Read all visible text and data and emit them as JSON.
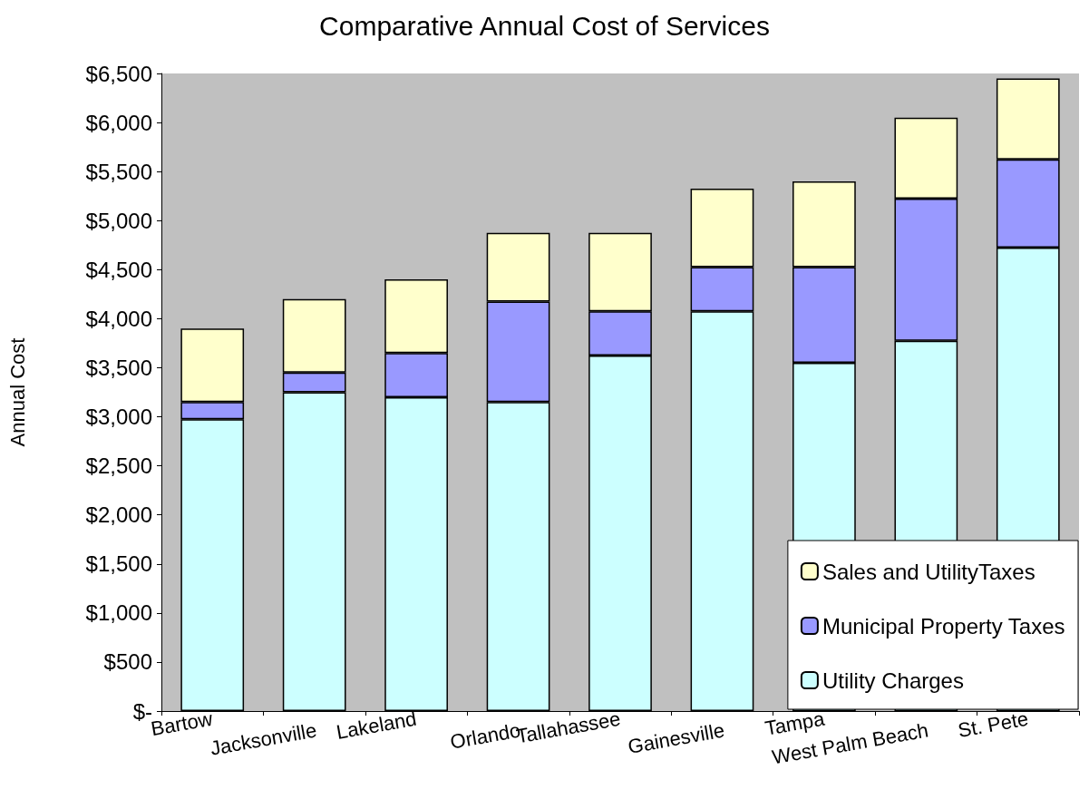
{
  "chart_data": {
    "type": "bar",
    "title": "Comparative Annual Cost of Services",
    "ylabel": "Annual Cost",
    "categories": [
      "Bartow",
      "Jacksonville",
      "Lakeland",
      "Orlando",
      "Tallahassee",
      "Gainesville",
      "Tampa",
      "West Palm Beach",
      "St. Pete"
    ],
    "stacked": true,
    "series": [
      {
        "name": "Utility Charges",
        "color": "#ccffff",
        "values": [
          2975,
          3250,
          3200,
          3150,
          3625,
          4075,
          3550,
          3775,
          4725
        ]
      },
      {
        "name": "Municipal Property Taxes",
        "color": "#9999ff",
        "values": [
          175,
          200,
          450,
          1025,
          450,
          450,
          975,
          1450,
          900
        ]
      },
      {
        "name": "Sales and UtilityTaxes",
        "color": "#ffffcc",
        "values": [
          750,
          750,
          750,
          700,
          800,
          800,
          875,
          825,
          825
        ]
      }
    ],
    "ylim": [
      0,
      6500
    ],
    "yticks": [
      {
        "value": 0,
        "label": "$-"
      },
      {
        "value": 500,
        "label": "$500"
      },
      {
        "value": 1000,
        "label": "$1,000"
      },
      {
        "value": 1500,
        "label": "$1,500"
      },
      {
        "value": 2000,
        "label": "$2,000"
      },
      {
        "value": 2500,
        "label": "$2,500"
      },
      {
        "value": 3000,
        "label": "$3,000"
      },
      {
        "value": 3500,
        "label": "$3,500"
      },
      {
        "value": 4000,
        "label": "$4,000"
      },
      {
        "value": 4500,
        "label": "$4,500"
      },
      {
        "value": 5000,
        "label": "$5,000"
      },
      {
        "value": 5500,
        "label": "$5,500"
      },
      {
        "value": 6000,
        "label": "$6,000"
      },
      {
        "value": 6500,
        "label": "$6,500"
      }
    ],
    "grid": false,
    "legend": "bottom right"
  }
}
